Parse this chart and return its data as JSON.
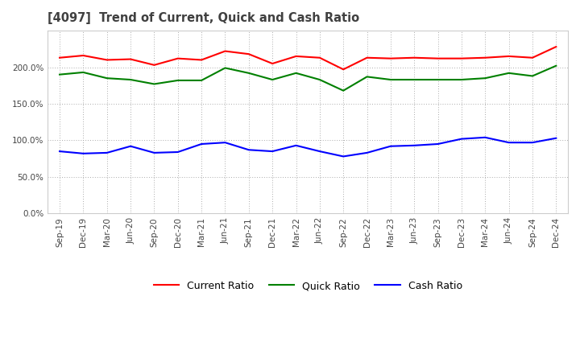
{
  "title": "[4097]  Trend of Current, Quick and Cash Ratio",
  "x_labels": [
    "Sep-19",
    "Dec-19",
    "Mar-20",
    "Jun-20",
    "Sep-20",
    "Dec-20",
    "Mar-21",
    "Jun-21",
    "Sep-21",
    "Dec-21",
    "Mar-22",
    "Jun-22",
    "Sep-22",
    "Dec-22",
    "Mar-23",
    "Jun-23",
    "Sep-23",
    "Dec-23",
    "Mar-24",
    "Jun-24",
    "Sep-24",
    "Dec-24"
  ],
  "current_ratio": [
    213,
    216,
    210,
    211,
    203,
    212,
    210,
    222,
    218,
    205,
    215,
    213,
    197,
    213,
    212,
    213,
    212,
    212,
    213,
    215,
    213,
    228
  ],
  "quick_ratio": [
    190,
    193,
    185,
    183,
    177,
    182,
    182,
    199,
    192,
    183,
    192,
    183,
    168,
    187,
    183,
    183,
    183,
    183,
    185,
    192,
    188,
    202
  ],
  "cash_ratio": [
    85,
    82,
    83,
    92,
    83,
    84,
    95,
    97,
    87,
    85,
    93,
    85,
    78,
    83,
    92,
    93,
    95,
    102,
    104,
    97,
    97,
    103
  ],
  "current_color": "#ff0000",
  "quick_color": "#008000",
  "cash_color": "#0000ff",
  "ylim": [
    0,
    250
  ],
  "yticks": [
    0,
    50,
    100,
    150,
    200
  ],
  "background_color": "#ffffff",
  "grid_color": "#aaaaaa"
}
